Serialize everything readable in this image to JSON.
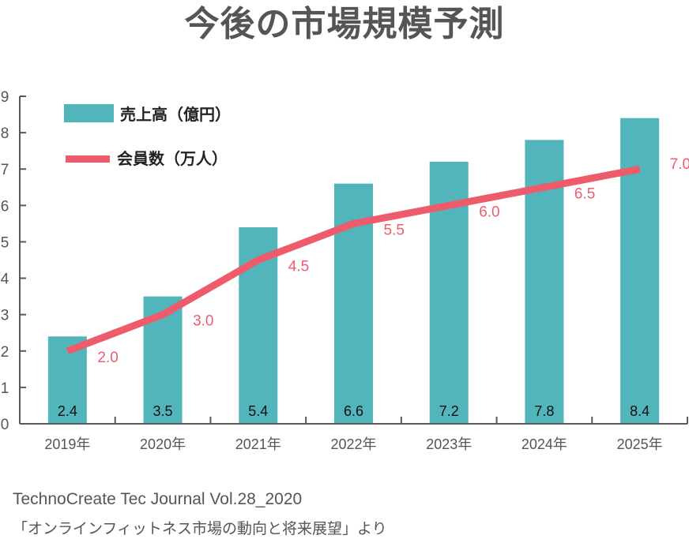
{
  "title": "今後の市場規模予測",
  "footer": {
    "line1": "TechnoCreate Tec Journal Vol.28_2020",
    "line2": "「オンラインフィットネス市場の動向と将来展望」より"
  },
  "colors": {
    "bar": "#52b5bb",
    "line": "#ee5c6c",
    "axis": "#595959",
    "text": "#555555"
  },
  "chart_data": {
    "type": "bar+line",
    "title": "今後の市場規模予測",
    "categories": [
      "2019年",
      "2020年",
      "2021年",
      "2022年",
      "2023年",
      "2024年",
      "2025年"
    ],
    "series": [
      {
        "name": "売上高（億円）",
        "type": "bar",
        "values": [
          2.4,
          3.5,
          5.4,
          6.6,
          7.2,
          7.8,
          8.4
        ]
      },
      {
        "name": "会員数（万人）",
        "type": "line",
        "values": [
          2.0,
          3.0,
          4.5,
          5.5,
          6.0,
          6.5,
          7.0
        ]
      }
    ],
    "yticks": [
      0,
      1,
      2,
      3,
      4,
      5,
      6,
      7,
      8,
      9
    ],
    "ylim": [
      0,
      9
    ],
    "xlabel": "",
    "ylabel": "",
    "grid": false,
    "legend_position": "top-left"
  }
}
